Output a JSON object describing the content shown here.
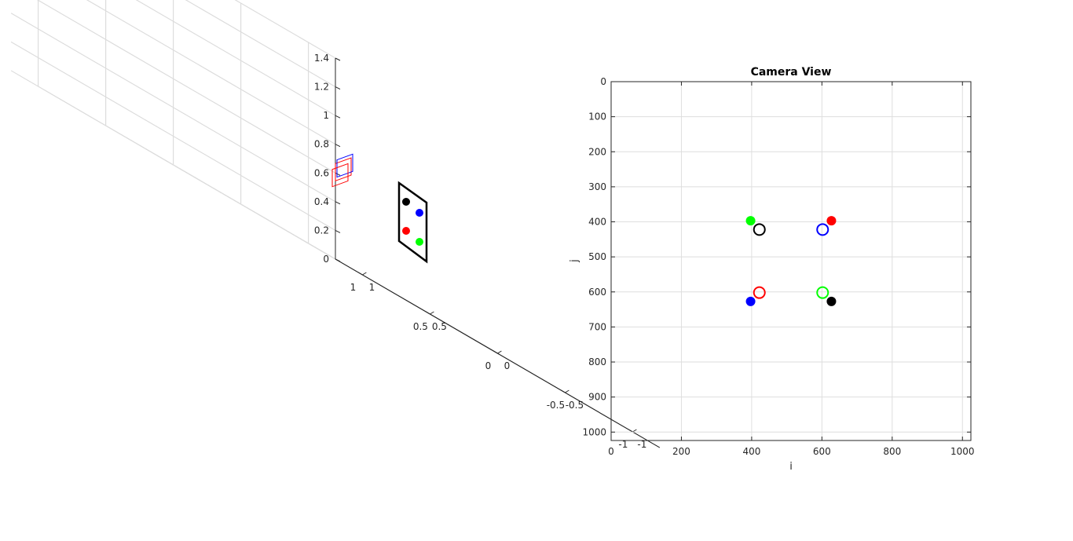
{
  "chart_data": [
    {
      "type": "scatter3d",
      "title": "",
      "xticks": [
        "-1",
        "-0.5",
        "0",
        "0.5",
        "1"
      ],
      "yticks": [
        "-1",
        "-0.5",
        "0",
        "0.5",
        "1"
      ],
      "zticks": [
        "0",
        "0.2",
        "0.4",
        "0.6",
        "0.8",
        "1",
        "1.2",
        "1.4"
      ],
      "xlim": [
        -1.2,
        1.2
      ],
      "ylim": [
        -1.2,
        1.2
      ],
      "zlim": [
        0,
        1.4
      ],
      "grid": true,
      "target_plane": {
        "color": "#000000",
        "points": [
          {
            "color": "#000000",
            "x": -0.2,
            "y": 0.9,
            "z": 0.97
          },
          {
            "color": "#0000ff",
            "x": 0.2,
            "y": 0.9,
            "z": 0.97
          },
          {
            "color": "#ff0000",
            "x": -0.2,
            "y": 0.9,
            "z": 0.63
          },
          {
            "color": "#00ff00",
            "x": 0.2,
            "y": 0.9,
            "z": 0.63
          }
        ]
      },
      "camera": {
        "x": 0,
        "y": 0,
        "z": 0.6,
        "colors": [
          "#ff0000",
          "#0000ff"
        ]
      }
    },
    {
      "type": "scatter",
      "title": "Camera View",
      "xlabel": "i",
      "ylabel": "j",
      "xlim": [
        0,
        1024
      ],
      "ylim": [
        0,
        1024
      ],
      "y_reversed": true,
      "grid": true,
      "xticks": [
        0,
        200,
        400,
        600,
        800,
        1000
      ],
      "yticks": [
        0,
        100,
        200,
        300,
        400,
        500,
        600,
        700,
        800,
        900,
        1000
      ],
      "filled_points": [
        {
          "color": "#00ff00",
          "x": 397,
          "y": 397
        },
        {
          "color": "#ff0000",
          "x": 627,
          "y": 397
        },
        {
          "color": "#0000ff",
          "x": 397,
          "y": 627
        },
        {
          "color": "#000000",
          "x": 627,
          "y": 627
        }
      ],
      "open_points": [
        {
          "color": "#000000",
          "x": 422,
          "y": 422
        },
        {
          "color": "#0000ff",
          "x": 602,
          "y": 422
        },
        {
          "color": "#ff0000",
          "x": 422,
          "y": 602
        },
        {
          "color": "#00ff00",
          "x": 602,
          "y": 602
        }
      ]
    }
  ]
}
